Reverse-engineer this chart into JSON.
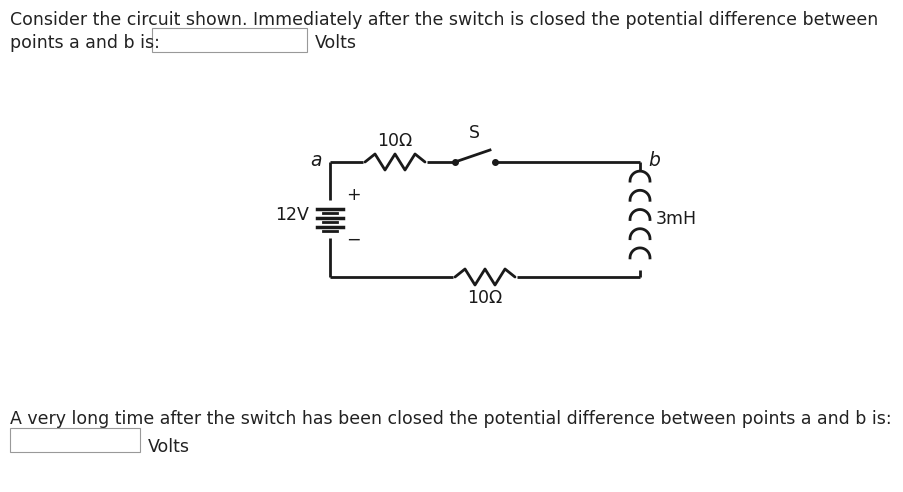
{
  "bg_color": "#ffffff",
  "text_color": "#222222",
  "title_line1": "Consider the circuit shown. Immediately after the switch is closed the potential difference between",
  "label_points": "points a and b is:",
  "volts_label1": "Volts",
  "bottom_text": "A very long time after the switch has been closed the potential difference between points a and b is:",
  "volts_label2": "Volts",
  "font_size_text": 12.5,
  "circuit": {
    "resistor_top_label": "10Ω",
    "switch_label": "S",
    "label_a": "a",
    "label_b": "b",
    "battery_label": "12V",
    "battery_plus": "+",
    "battery_minus": "−",
    "inductor_label": "3mH",
    "resistor_bot_label": "10Ω"
  }
}
